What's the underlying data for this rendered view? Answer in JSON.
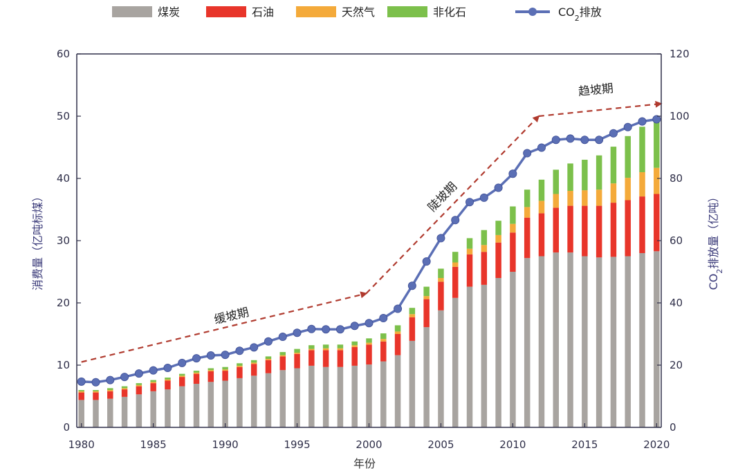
{
  "chart_data": {
    "type": "bar",
    "stacked": true,
    "categories": [
      1980,
      1981,
      1982,
      1983,
      1984,
      1985,
      1986,
      1987,
      1988,
      1989,
      1990,
      1991,
      1992,
      1993,
      1994,
      1995,
      1996,
      1997,
      1998,
      1999,
      2000,
      2001,
      2002,
      2003,
      2004,
      2005,
      2006,
      2007,
      2008,
      2009,
      2010,
      2011,
      2012,
      2013,
      2014,
      2015,
      2016,
      2017,
      2018,
      2019,
      2020
    ],
    "series": [
      {
        "name": "煤炭",
        "color": "#a8a4a0",
        "axis": "left",
        "values": [
          4.4,
          4.4,
          4.6,
          4.9,
          5.3,
          5.8,
          6.1,
          6.6,
          7.0,
          7.3,
          7.5,
          7.9,
          8.3,
          8.7,
          9.2,
          9.5,
          9.9,
          9.7,
          9.7,
          9.9,
          10.1,
          10.6,
          11.6,
          13.9,
          16.1,
          18.8,
          20.8,
          22.6,
          22.9,
          24.0,
          25.0,
          27.2,
          27.5,
          28.1,
          28.1,
          27.5,
          27.3,
          27.4,
          27.5,
          28.0,
          28.3
        ]
      },
      {
        "name": "石油",
        "color": "#e8352a",
        "axis": "left",
        "values": [
          1.2,
          1.2,
          1.2,
          1.2,
          1.3,
          1.3,
          1.4,
          1.5,
          1.6,
          1.7,
          1.6,
          1.8,
          1.9,
          2.1,
          2.2,
          2.3,
          2.5,
          2.7,
          2.7,
          3.0,
          3.2,
          3.2,
          3.4,
          3.8,
          4.5,
          4.6,
          5.0,
          5.2,
          5.3,
          5.7,
          6.3,
          6.5,
          6.9,
          7.2,
          7.5,
          8.1,
          8.3,
          8.7,
          9.0,
          9.1,
          9.2
        ]
      },
      {
        "name": "天然气",
        "color": "#f4aa3a",
        "axis": "left",
        "values": [
          0.2,
          0.2,
          0.2,
          0.2,
          0.2,
          0.2,
          0.2,
          0.2,
          0.2,
          0.2,
          0.2,
          0.2,
          0.2,
          0.2,
          0.2,
          0.2,
          0.2,
          0.3,
          0.3,
          0.3,
          0.3,
          0.4,
          0.4,
          0.5,
          0.5,
          0.6,
          0.7,
          0.9,
          1.1,
          1.2,
          1.4,
          1.7,
          2.0,
          2.2,
          2.4,
          2.5,
          2.6,
          3.1,
          3.6,
          3.9,
          4.2
        ]
      },
      {
        "name": "非化石",
        "color": "#7cc04b",
        "axis": "left",
        "values": [
          0.2,
          0.2,
          0.3,
          0.3,
          0.3,
          0.3,
          0.3,
          0.3,
          0.3,
          0.3,
          0.4,
          0.4,
          0.4,
          0.4,
          0.5,
          0.6,
          0.6,
          0.6,
          0.6,
          0.6,
          0.7,
          0.9,
          1.0,
          1.0,
          1.5,
          1.5,
          1.7,
          1.7,
          2.4,
          2.3,
          2.8,
          2.8,
          3.4,
          3.9,
          4.4,
          4.9,
          5.5,
          5.9,
          6.7,
          7.3,
          7.8
        ]
      },
      {
        "name": "CO2排放",
        "type": "line",
        "color": "#5b6fb5",
        "axis": "right",
        "values": [
          14.7,
          14.5,
          15.2,
          16.2,
          17.3,
          18.3,
          19.1,
          20.7,
          22.2,
          23.1,
          23.3,
          24.6,
          25.7,
          27.6,
          29.1,
          30.4,
          31.6,
          31.5,
          31.5,
          32.6,
          33.5,
          35.1,
          38.1,
          45.5,
          53.3,
          60.8,
          66.6,
          72.4,
          73.8,
          77.0,
          81.5,
          88.1,
          89.9,
          92.4,
          92.8,
          92.4,
          92.4,
          94.5,
          96.5,
          98.3,
          99.0
        ]
      }
    ],
    "legend": [
      {
        "label": "煤炭",
        "color": "#a8a4a0",
        "kind": "box"
      },
      {
        "label": "石油",
        "color": "#e8352a",
        "kind": "box"
      },
      {
        "label": "天然气",
        "color": "#f4aa3a",
        "kind": "box"
      },
      {
        "label": "非化石",
        "color": "#7cc04b",
        "kind": "box"
      },
      {
        "label_main": "CO",
        "label_sub": "2",
        "label_tail": "排放",
        "color": "#5b6fb5",
        "kind": "line"
      }
    ],
    "xlabel": "年份",
    "ylabel_left": "消费量（亿吨标煤）",
    "ylabel_right_main": "CO",
    "ylabel_right_sub": "2",
    "ylabel_right_tail": "排放量（亿吨）",
    "xlim": [
      1980,
      2020
    ],
    "xticks": [
      1980,
      1985,
      1990,
      1995,
      2000,
      2005,
      2010,
      2015,
      2020
    ],
    "ylim_left": [
      0,
      60
    ],
    "yticks_left": [
      0,
      10,
      20,
      30,
      40,
      50,
      60
    ],
    "ylim_right": [
      0,
      120
    ],
    "yticks_right": [
      0,
      20,
      40,
      60,
      80,
      100,
      120
    ],
    "grid": false,
    "legend_position": "top",
    "annotations": [
      {
        "label": "缓坡期",
        "from": [
          1980,
          10.5
        ],
        "to": [
          1999.8,
          21.5
        ],
        "text_at": [
          1990.5,
          17.3
        ],
        "color": "#b03a2e"
      },
      {
        "label": "陡坡期",
        "from": [
          1999.8,
          21.5
        ],
        "to": [
          2011.8,
          50.0
        ],
        "text_at": [
          2005.3,
          36.6
        ],
        "color": "#b03a2e"
      },
      {
        "label": "趋坡期",
        "from": [
          2011.8,
          50.0
        ],
        "to": [
          2020.3,
          52.0
        ],
        "text_at": [
          2015.8,
          53.6
        ],
        "color": "#b03a2e"
      }
    ]
  }
}
